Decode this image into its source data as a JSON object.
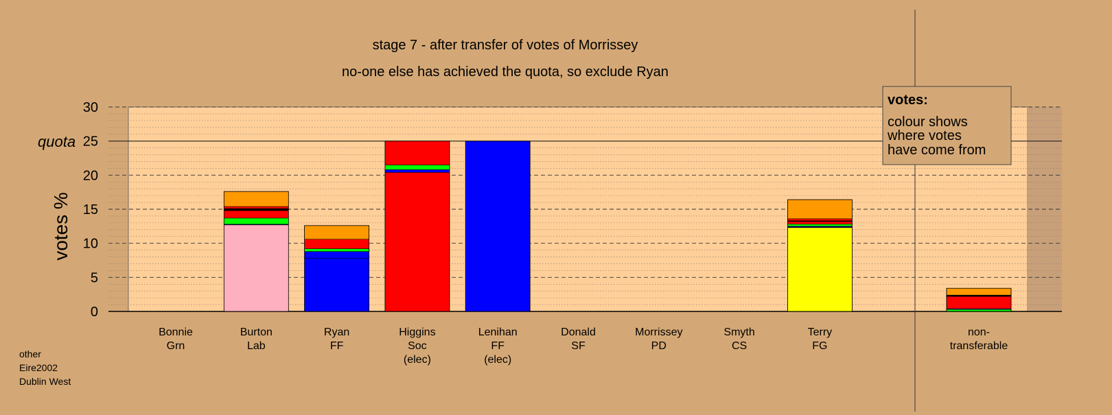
{
  "chart_data": {
    "type": "bar",
    "stacked": true,
    "title": "stage 7 - after transfer of votes of Morrissey",
    "subtitle": "no-one else has achieved the quota, so exclude Ryan",
    "ylabel": "votes %",
    "ylim": [
      0,
      30
    ],
    "yticks": [
      0,
      5,
      10,
      15,
      20,
      25,
      30
    ],
    "quota": 25,
    "quota_label": "quota",
    "legend": {
      "title": "votes:",
      "lines": [
        "colour shows",
        "where votes",
        "have come from"
      ],
      "placement": "top-right"
    },
    "candidates": [
      {
        "name": "Bonnie",
        "party": "Grn",
        "note": "",
        "segments": []
      },
      {
        "name": "Burton",
        "party": "Lab",
        "note": "",
        "segments": [
          {
            "color": "#FFB0C0",
            "value": 12.7
          },
          {
            "color": "#000080",
            "value": 0.1
          },
          {
            "color": "#00FF00",
            "value": 0.9
          },
          {
            "color": "#FF0000",
            "value": 1.1
          },
          {
            "color": "#000000",
            "value": 0.3
          },
          {
            "color": "#FF0000",
            "value": 0.3
          },
          {
            "color": "#FF9900",
            "value": 2.2
          }
        ]
      },
      {
        "name": "Ryan",
        "party": "FF",
        "note": "",
        "segments": [
          {
            "color": "#0000FF",
            "value": 7.8
          },
          {
            "color": "#0000FF",
            "value": 1.0
          },
          {
            "color": "#00FF00",
            "value": 0.4
          },
          {
            "color": "#FF0000",
            "value": 1.4
          },
          {
            "color": "#FF9900",
            "value": 2.0
          }
        ]
      },
      {
        "name": "Higgins",
        "party": "Soc",
        "note": "(elec)",
        "segments": [
          {
            "color": "#FF0000",
            "value": 20.4
          },
          {
            "color": "#0000FF",
            "value": 0.4
          },
          {
            "color": "#00FF00",
            "value": 0.7
          },
          {
            "color": "#FF0000",
            "value": 3.5
          }
        ]
      },
      {
        "name": "Lenihan",
        "party": "FF",
        "note": "(elec)",
        "segments": [
          {
            "color": "#0000FF",
            "value": 25.0
          }
        ]
      },
      {
        "name": "Donald",
        "party": "SF",
        "note": "",
        "segments": []
      },
      {
        "name": "Morrissey",
        "party": "PD",
        "note": "",
        "segments": []
      },
      {
        "name": "Smyth",
        "party": "CS",
        "note": "",
        "segments": []
      },
      {
        "name": "Terry",
        "party": "FG",
        "note": "",
        "segments": [
          {
            "color": "#FFFF00",
            "value": 12.3
          },
          {
            "color": "#000080",
            "value": 0.2
          },
          {
            "color": "#00FF00",
            "value": 0.3
          },
          {
            "color": "#FF0000",
            "value": 0.4
          },
          {
            "color": "#000000",
            "value": 0.1
          },
          {
            "color": "#FF0000",
            "value": 0.3
          },
          {
            "color": "#FF9900",
            "value": 2.8
          }
        ]
      }
    ],
    "nontransferable": {
      "label_lines": [
        "non-",
        "transferable"
      ],
      "segments": [
        {
          "color": "#00FF00",
          "value": 0.3
        },
        {
          "color": "#0000FF",
          "value": 0.1
        },
        {
          "color": "#FF0000",
          "value": 1.8
        },
        {
          "color": "#000000",
          "value": 0.2
        },
        {
          "color": "#FF9900",
          "value": 1.0
        }
      ]
    }
  },
  "footer": {
    "line1": "other",
    "line2": "Eire2002",
    "line3": "Dublin West"
  }
}
